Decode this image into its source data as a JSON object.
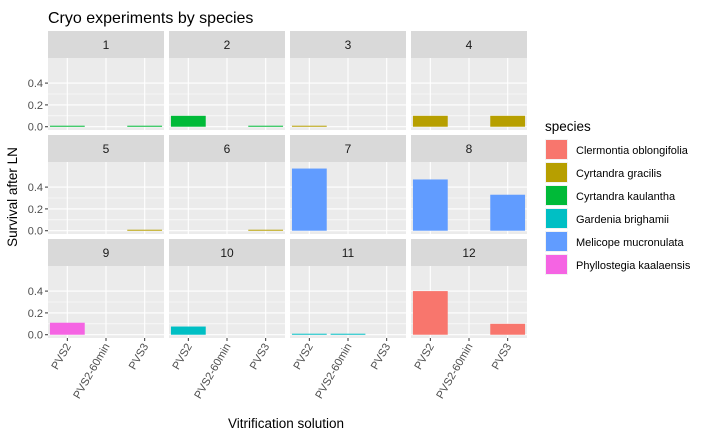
{
  "chart_data": {
    "type": "bar",
    "title": "Cryo experiments by species",
    "xlabel": "Vitrification solution",
    "ylabel": "Survival after LN",
    "categories": [
      "PVS2",
      "PVS2-60min",
      "PVS3"
    ],
    "yticks": [
      0.0,
      0.2,
      0.4
    ],
    "ytick_labels": [
      "0.0",
      "0.2",
      "0.4"
    ],
    "ylim": [
      -0.03,
      0.63
    ],
    "grid": true,
    "legend": {
      "title": "species",
      "position": "right",
      "entries": [
        {
          "name": "Clermontia oblongifolia",
          "color": "#F8766D"
        },
        {
          "name": "Cyrtandra gracilis",
          "color": "#B79F00"
        },
        {
          "name": "Cyrtandra kaulantha",
          "color": "#00BA38"
        },
        {
          "name": "Gardenia brighamii",
          "color": "#00BFC4"
        },
        {
          "name": "Melicope mucronulata",
          "color": "#619CFF"
        },
        {
          "name": "Phyllostegia kaalaensis",
          "color": "#F564E3"
        }
      ]
    },
    "facets": [
      {
        "label": "1",
        "bars": [
          {
            "x": "PVS2",
            "value": 0.005,
            "species": "Cyrtandra kaulantha"
          },
          {
            "x": "PVS3",
            "value": 0.005,
            "species": "Cyrtandra kaulantha"
          }
        ]
      },
      {
        "label": "2",
        "bars": [
          {
            "x": "PVS2",
            "value": 0.1,
            "species": "Cyrtandra kaulantha"
          },
          {
            "x": "PVS3",
            "value": 0.005,
            "species": "Cyrtandra kaulantha"
          }
        ]
      },
      {
        "label": "3",
        "bars": [
          {
            "x": "PVS2",
            "value": 0.005,
            "species": "Cyrtandra gracilis"
          }
        ]
      },
      {
        "label": "4",
        "bars": [
          {
            "x": "PVS2",
            "value": 0.1,
            "species": "Cyrtandra gracilis"
          },
          {
            "x": "PVS3",
            "value": 0.1,
            "species": "Cyrtandra gracilis"
          }
        ]
      },
      {
        "label": "5",
        "bars": [
          {
            "x": "PVS3",
            "value": 0.005,
            "species": "Cyrtandra gracilis"
          }
        ]
      },
      {
        "label": "6",
        "bars": [
          {
            "x": "PVS3",
            "value": 0.005,
            "species": "Cyrtandra gracilis"
          }
        ]
      },
      {
        "label": "7",
        "bars": [
          {
            "x": "PVS2",
            "value": 0.57,
            "species": "Melicope mucronulata"
          }
        ]
      },
      {
        "label": "8",
        "bars": [
          {
            "x": "PVS2",
            "value": 0.47,
            "species": "Melicope mucronulata"
          },
          {
            "x": "PVS3",
            "value": 0.33,
            "species": "Melicope mucronulata"
          }
        ]
      },
      {
        "label": "9",
        "bars": [
          {
            "x": "PVS2",
            "value": 0.11,
            "species": "Phyllostegia kaalaensis"
          }
        ]
      },
      {
        "label": "10",
        "bars": [
          {
            "x": "PVS2",
            "value": 0.075,
            "species": "Gardenia brighamii"
          }
        ]
      },
      {
        "label": "11",
        "bars": [
          {
            "x": "PVS2",
            "value": 0.005,
            "species": "Gardenia brighamii"
          },
          {
            "x": "PVS2-60min",
            "value": 0.005,
            "species": "Gardenia brighamii"
          }
        ]
      },
      {
        "label": "12",
        "bars": [
          {
            "x": "PVS2",
            "value": 0.4,
            "species": "Clermontia oblongifolia"
          },
          {
            "x": "PVS3",
            "value": 0.1,
            "species": "Clermontia oblongifolia"
          }
        ]
      }
    ]
  }
}
